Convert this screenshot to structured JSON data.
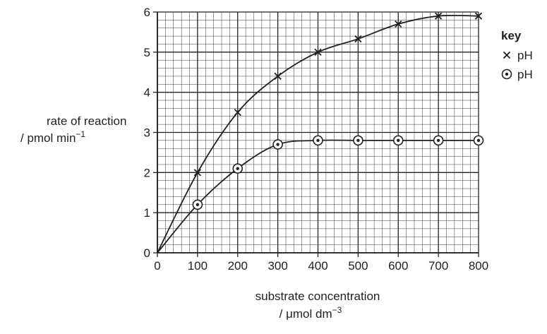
{
  "chart_data": {
    "type": "scatter",
    "xlabel_line1": "substrate concentration",
    "xlabel_line2": "/ μmol dm",
    "xlabel_sup": "−3",
    "ylabel_line1": "rate of reaction",
    "ylabel_line2": "/ pmol min",
    "ylabel_sup": "−1",
    "xlim": [
      0,
      800
    ],
    "ylim": [
      0,
      6
    ],
    "xticks": [
      "0",
      "100",
      "200",
      "300",
      "400",
      "500",
      "600",
      "700",
      "800"
    ],
    "yticks": [
      "0",
      "1",
      "2",
      "3",
      "4",
      "5",
      "6"
    ],
    "grid": true,
    "legend": {
      "title": "key",
      "placement": "right",
      "entries": [
        "pH",
        "pH"
      ]
    },
    "series": [
      {
        "name": "pH",
        "marker": "cross",
        "points": [
          [
            0,
            0
          ],
          [
            100,
            2.0
          ],
          [
            200,
            3.5
          ],
          [
            300,
            4.4
          ],
          [
            400,
            5.0
          ],
          [
            500,
            5.33
          ],
          [
            600,
            5.7
          ],
          [
            700,
            5.9
          ],
          [
            800,
            5.9
          ]
        ]
      },
      {
        "name": "pH",
        "marker": "circle-dot",
        "points": [
          [
            0,
            0
          ],
          [
            100,
            1.2
          ],
          [
            200,
            2.1
          ],
          [
            300,
            2.7
          ],
          [
            400,
            2.8
          ],
          [
            500,
            2.8
          ],
          [
            600,
            2.8
          ],
          [
            700,
            2.8
          ],
          [
            800,
            2.8
          ]
        ]
      }
    ]
  }
}
